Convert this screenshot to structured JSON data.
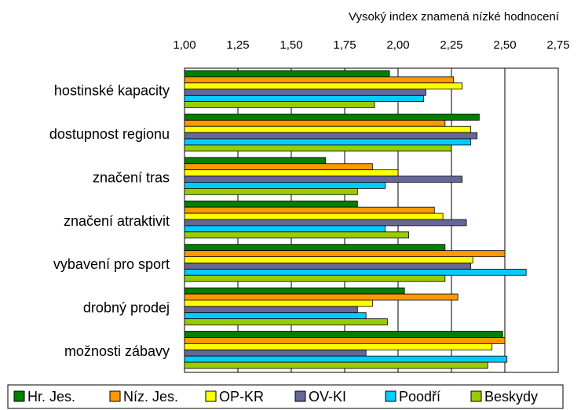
{
  "chart_data": {
    "type": "hbar",
    "axis_label": "Vysoký index znamená nízké hodnocení",
    "categories": [
      "hostinské kapacity",
      "dostupnost regionu",
      "značení tras",
      "značení atraktivit",
      "vybavení pro sport",
      "drobný prodej",
      "možnosti zábavy"
    ],
    "series": [
      {
        "name": "Hr. Jes.",
        "color": "#008000",
        "values": [
          1.96,
          2.38,
          1.66,
          1.81,
          2.22,
          2.03,
          2.49
        ]
      },
      {
        "name": "Níz. Jes.",
        "color": "#ff9900",
        "values": [
          2.26,
          2.22,
          1.88,
          2.17,
          2.5,
          2.28,
          2.5
        ]
      },
      {
        "name": "OP-KR",
        "color": "#ffff00",
        "values": [
          2.3,
          2.34,
          2.0,
          2.21,
          2.35,
          1.88,
          2.44
        ]
      },
      {
        "name": "OV-KI",
        "color": "#666699",
        "values": [
          2.13,
          2.37,
          2.3,
          2.32,
          2.34,
          1.81,
          1.85
        ]
      },
      {
        "name": "Poodří",
        "color": "#00ccff",
        "values": [
          2.12,
          2.34,
          1.94,
          1.94,
          2.6,
          1.85,
          2.51
        ]
      },
      {
        "name": "Beskydy",
        "color": "#99cc00",
        "values": [
          1.89,
          2.25,
          1.81,
          2.05,
          2.22,
          1.95,
          2.42
        ]
      }
    ],
    "xlim": [
      1,
      2.75
    ],
    "xticks": [
      {
        "value": 1,
        "label": "1,00"
      },
      {
        "value": 1.25,
        "label": "1,25"
      },
      {
        "value": 1.5,
        "label": "1,50"
      },
      {
        "value": 1.75,
        "label": "1,75"
      },
      {
        "value": 2,
        "label": "2,00"
      },
      {
        "value": 2.25,
        "label": "2,25"
      },
      {
        "value": 2.5,
        "label": "2,50"
      },
      {
        "value": 2.75,
        "label": "2,75"
      }
    ],
    "grid": true,
    "legend": "bottom"
  }
}
